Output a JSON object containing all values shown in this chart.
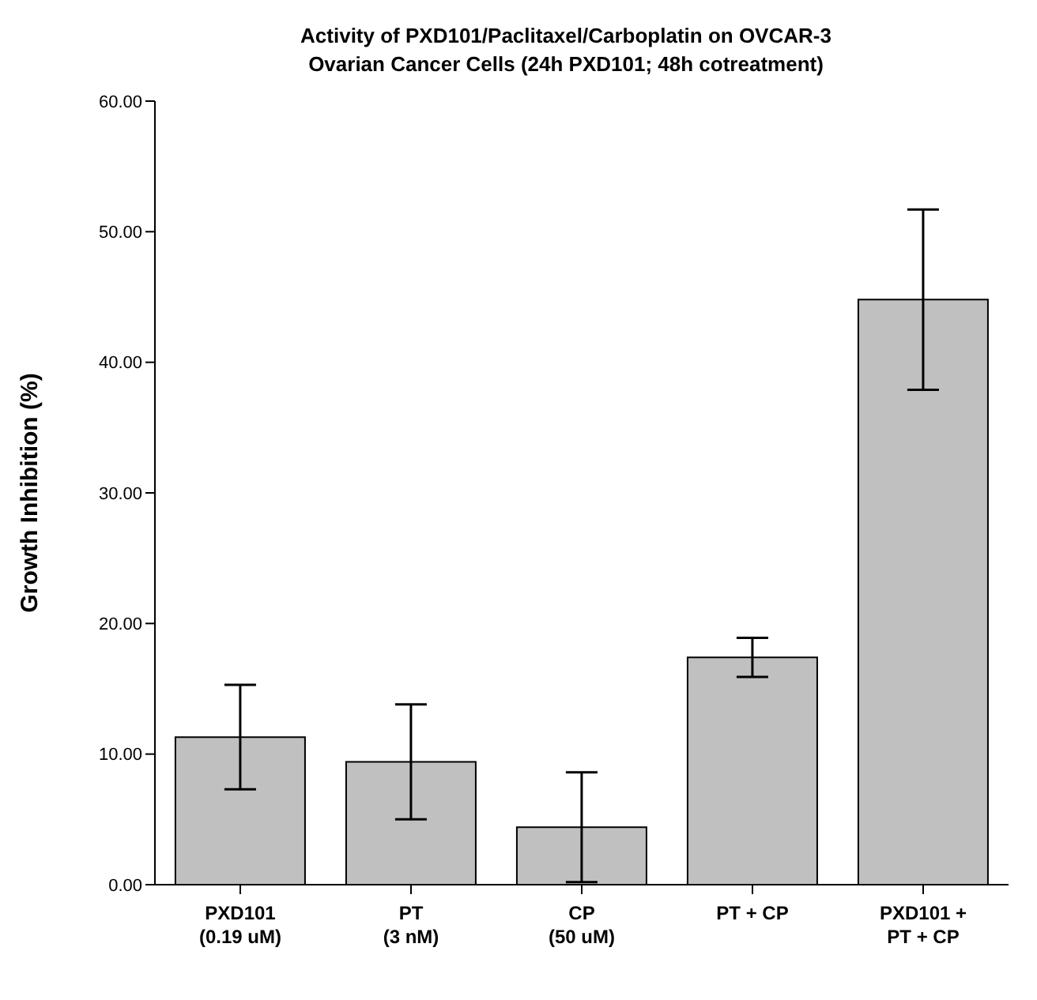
{
  "chart_data": {
    "type": "bar",
    "title": "Activity of PXD101/Paclitaxel/Carboplatin on OVCAR-3\nOvarian Cancer Cells (24h PXD101; 48h cotreatment)",
    "ylabel": "Growth Inhibition (%)",
    "categories": [
      "PXD101\n(0.19 uM)",
      "PT\n(3 nM)",
      "CP\n(50 uM)",
      "PT + CP",
      "PXD101 +\nPT + CP"
    ],
    "values": [
      11.3,
      9.4,
      4.4,
      17.4,
      44.8
    ],
    "errors": [
      4.0,
      4.4,
      4.2,
      1.5,
      6.9
    ],
    "color": "#c0c0c0",
    "ylim": [
      0,
      60
    ],
    "yticks": [
      {
        "value": 0,
        "label": "0.00"
      },
      {
        "value": 10,
        "label": "10.00"
      },
      {
        "value": 20,
        "label": "20.00"
      },
      {
        "value": 30,
        "label": "30.00"
      },
      {
        "value": 40,
        "label": "40.00"
      },
      {
        "value": 50,
        "label": "50.00"
      },
      {
        "value": 60,
        "label": "60.00"
      }
    ],
    "grid": false,
    "legend": false
  }
}
